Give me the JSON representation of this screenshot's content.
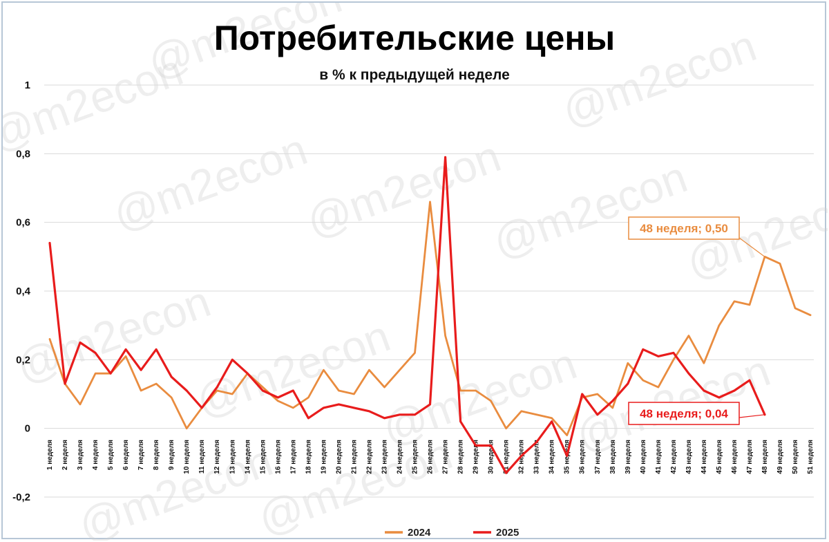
{
  "chart_data": {
    "type": "line",
    "title": "Потребительские цены",
    "subtitle": "в % к предыдущей неделе",
    "watermark": "@m2econ",
    "xlabel": "",
    "ylabel": "",
    "ylim": [
      -0.2,
      1
    ],
    "yticks": [
      -0.2,
      0,
      0.2,
      0.4,
      0.6,
      0.8,
      1
    ],
    "ytick_labels": [
      "-0,2",
      "0",
      "0,2",
      "0,4",
      "0,6",
      "0,8",
      "1"
    ],
    "grid": true,
    "legend_position": "bottom",
    "categories": [
      "1 неделя",
      "2 неделя",
      "3 неделя",
      "4 неделя",
      "5 неделя",
      "6 неделя",
      "7 неделя",
      "8 неделя",
      "9 неделя",
      "10 неделя",
      "11 неделя",
      "12 неделя",
      "13 неделя",
      "14 неделя",
      "15 неделя",
      "16 неделя",
      "17 неделя",
      "18 неделя",
      "19 неделя",
      "20 неделя",
      "21 неделя",
      "22 неделя",
      "23 неделя",
      "24 неделя",
      "25 неделя",
      "26 неделя",
      "27 неделя",
      "28 неделя",
      "29 неделя",
      "30 неделя",
      "31 неделя",
      "32 неделя",
      "33 неделя",
      "34 неделя",
      "35 неделя",
      "36 неделя",
      "37 неделя",
      "38 неделя",
      "39 неделя",
      "40 неделя",
      "41 неделя",
      "42 неделя",
      "43 неделя",
      "44 неделя",
      "45 неделя",
      "46 неделя",
      "47 неделя",
      "48 неделя",
      "49 неделя",
      "50 неделя",
      "51 неделя"
    ],
    "series": [
      {
        "name": "2024",
        "color": "#e98c3f",
        "values": [
          0.26,
          0.13,
          0.07,
          0.16,
          0.16,
          0.21,
          0.11,
          0.13,
          0.09,
          0.0,
          0.06,
          0.11,
          0.1,
          0.16,
          0.12,
          0.08,
          0.06,
          0.09,
          0.17,
          0.11,
          0.1,
          0.17,
          0.12,
          0.17,
          0.22,
          0.66,
          0.27,
          0.11,
          0.11,
          0.08,
          0.0,
          0.05,
          0.04,
          0.03,
          -0.02,
          0.09,
          0.1,
          0.06,
          0.19,
          0.14,
          0.12,
          0.2,
          0.27,
          0.19,
          0.3,
          0.37,
          0.36,
          0.5,
          0.48,
          0.35,
          0.33
        ]
      },
      {
        "name": "2025",
        "color": "#e81c1c",
        "values": [
          0.54,
          0.13,
          0.25,
          0.22,
          0.16,
          0.23,
          0.17,
          0.23,
          0.15,
          0.11,
          0.06,
          0.12,
          0.2,
          0.16,
          0.11,
          0.09,
          0.11,
          0.03,
          0.06,
          0.07,
          0.06,
          0.05,
          0.03,
          0.04,
          0.04,
          0.07,
          0.79,
          0.02,
          -0.05,
          -0.05,
          -0.13,
          -0.08,
          -0.04,
          0.02,
          -0.08,
          0.1,
          0.04,
          0.08,
          0.13,
          0.23,
          0.21,
          0.22,
          0.16,
          0.11,
          0.09,
          0.11,
          0.14,
          0.04,
          null,
          null,
          null
        ]
      }
    ],
    "annotations": [
      {
        "text": "48 неделя; 0,50",
        "series": "2024",
        "index": 47,
        "color": "#e98c3f"
      },
      {
        "text": "48 неделя; 0,04",
        "series": "2025",
        "index": 47,
        "color": "#e81c1c"
      }
    ]
  }
}
